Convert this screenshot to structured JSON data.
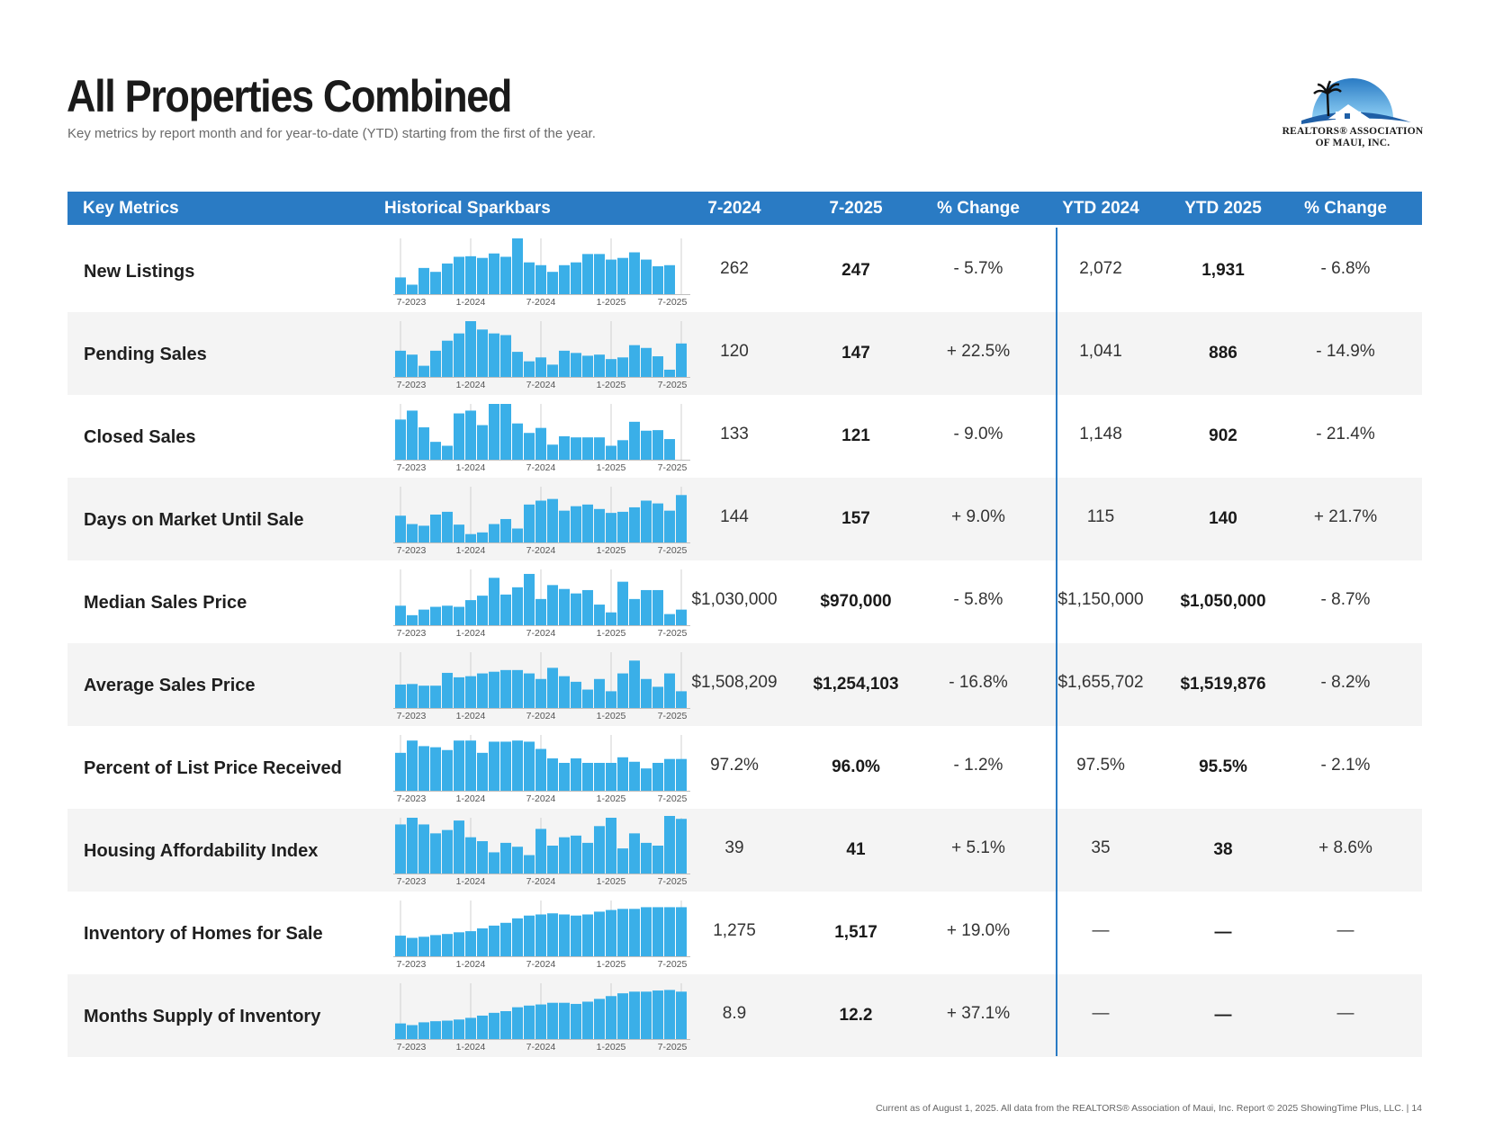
{
  "page": {
    "title": "All Properties Combined",
    "subtitle": "Key metrics by report month and for year-to-date (YTD) starting from the first of the year.",
    "logo_line1": "REALTORS® ASSOCIATION",
    "logo_line2": "OF MAUI, INC.",
    "footer": "Current as of August 1, 2025. All data from the REALTORS® Association of Maui, Inc. Report © 2025 ShowingTime Plus, LLC.  |  14"
  },
  "colors": {
    "header_bg": "#2a7bc4",
    "bar": "#3aafe8",
    "row_alt": "#f4f4f4"
  },
  "columns": [
    "Key Metrics",
    "Historical Sparkbars",
    "7-2024",
    "7-2025",
    "% Change",
    "YTD 2024",
    "YTD 2025",
    "% Change"
  ],
  "spark_axis_labels": [
    "7-2023",
    "1-2024",
    "7-2024",
    "1-2025",
    "7-2025"
  ],
  "rows": [
    {
      "metric": "New Listings",
      "m2024": "262",
      "m2025": "247",
      "mchg": "- 5.7%",
      "y2024": "2,072",
      "y2025": "1,931",
      "ychg": "- 6.8%",
      "spark": [
        0.3,
        0.17,
        0.47,
        0.4,
        0.55,
        0.67,
        0.68,
        0.65,
        0.73,
        0.67,
        1.0,
        0.57,
        0.52,
        0.4,
        0.52,
        0.57,
        0.72,
        0.72,
        0.62,
        0.65,
        0.75,
        0.62,
        0.5,
        0.52
      ]
    },
    {
      "metric": "Pending Sales",
      "m2024": "120",
      "m2025": "147",
      "mchg": "+ 22.5%",
      "y2024": "1,041",
      "y2025": "886",
      "ychg": "- 14.9%",
      "spark": [
        0.47,
        0.4,
        0.2,
        0.47,
        0.65,
        0.78,
        1.0,
        0.85,
        0.78,
        0.75,
        0.45,
        0.28,
        0.35,
        0.22,
        0.47,
        0.43,
        0.38,
        0.4,
        0.32,
        0.35,
        0.57,
        0.52,
        0.37,
        0.13,
        0.6
      ]
    },
    {
      "metric": "Closed Sales",
      "m2024": "133",
      "m2025": "121",
      "mchg": "- 9.0%",
      "y2024": "1,148",
      "y2025": "902",
      "ychg": "- 21.4%",
      "spark": [
        0.72,
        0.88,
        0.58,
        0.32,
        0.25,
        0.83,
        0.88,
        0.62,
        1.0,
        1.0,
        0.65,
        0.48,
        0.57,
        0.27,
        0.42,
        0.4,
        0.4,
        0.4,
        0.25,
        0.35,
        0.68,
        0.52,
        0.53,
        0.37
      ]
    },
    {
      "metric": "Days on Market Until Sale",
      "m2024": "144",
      "m2025": "157",
      "mchg": "+ 9.0%",
      "y2024": "115",
      "y2025": "140",
      "ychg": "+ 21.7%",
      "spark": [
        0.48,
        0.33,
        0.3,
        0.5,
        0.55,
        0.32,
        0.15,
        0.18,
        0.33,
        0.42,
        0.25,
        0.68,
        0.75,
        0.78,
        0.57,
        0.65,
        0.68,
        0.6,
        0.53,
        0.55,
        0.63,
        0.75,
        0.7,
        0.57,
        0.85
      ]
    },
    {
      "metric": "Median Sales Price",
      "m2024": "$1,030,000",
      "m2025": "$970,000",
      "mchg": "- 5.8%",
      "y2024": "$1,150,000",
      "y2025": "$1,050,000",
      "ychg": "- 8.7%",
      "spark": [
        0.35,
        0.18,
        0.28,
        0.33,
        0.35,
        0.33,
        0.45,
        0.53,
        0.85,
        0.55,
        0.68,
        0.92,
        0.47,
        0.72,
        0.65,
        0.57,
        0.63,
        0.37,
        0.23,
        0.78,
        0.47,
        0.63,
        0.63,
        0.2,
        0.28
      ]
    },
    {
      "metric": "Average Sales Price",
      "m2024": "$1,508,209",
      "m2025": "$1,254,103",
      "mchg": "- 16.8%",
      "y2024": "$1,655,702",
      "y2025": "$1,519,876",
      "ychg": "- 8.2%",
      "spark": [
        0.42,
        0.43,
        0.4,
        0.4,
        0.63,
        0.55,
        0.57,
        0.62,
        0.65,
        0.68,
        0.68,
        0.62,
        0.52,
        0.72,
        0.57,
        0.47,
        0.33,
        0.52,
        0.3,
        0.62,
        0.85,
        0.52,
        0.38,
        0.62,
        0.3
      ]
    },
    {
      "metric": "Percent of List Price Received",
      "m2024": "97.2%",
      "m2025": "96.0%",
      "mchg": "- 1.2%",
      "y2024": "97.5%",
      "y2025": "95.5%",
      "ychg": "- 2.1%",
      "spark": [
        0.68,
        0.9,
        0.8,
        0.78,
        0.73,
        0.9,
        0.9,
        0.68,
        0.88,
        0.88,
        0.9,
        0.88,
        0.75,
        0.58,
        0.5,
        0.58,
        0.5,
        0.5,
        0.5,
        0.6,
        0.52,
        0.4,
        0.5,
        0.57,
        0.57
      ]
    },
    {
      "metric": "Housing Affordability Index",
      "m2024": "39",
      "m2025": "41",
      "mchg": "+ 5.1%",
      "y2024": "35",
      "y2025": "38",
      "ychg": "+ 8.6%",
      "spark": [
        0.88,
        1.0,
        0.88,
        0.72,
        0.78,
        0.95,
        0.65,
        0.58,
        0.38,
        0.55,
        0.48,
        0.33,
        0.8,
        0.5,
        0.65,
        0.68,
        0.55,
        0.85,
        1.0,
        0.45,
        0.72,
        0.55,
        0.5,
        1.05,
        0.98
      ]
    },
    {
      "metric": "Inventory of Homes for Sale",
      "m2024": "1,275",
      "m2025": "1,517",
      "mchg": "+ 19.0%",
      "y2024": "—",
      "y2025": "—",
      "ychg": "—",
      "spark": [
        0.37,
        0.33,
        0.35,
        0.38,
        0.4,
        0.43,
        0.45,
        0.5,
        0.55,
        0.6,
        0.68,
        0.73,
        0.75,
        0.77,
        0.75,
        0.73,
        0.75,
        0.8,
        0.83,
        0.85,
        0.85,
        0.88,
        0.88,
        0.88,
        0.88
      ]
    },
    {
      "metric": "Months Supply of Inventory",
      "m2024": "8.9",
      "m2025": "12.2",
      "mchg": "+ 37.1%",
      "y2024": "—",
      "y2025": "—",
      "ychg": "—",
      "spark": [
        0.28,
        0.25,
        0.3,
        0.32,
        0.33,
        0.35,
        0.38,
        0.42,
        0.47,
        0.5,
        0.57,
        0.6,
        0.62,
        0.65,
        0.65,
        0.63,
        0.67,
        0.72,
        0.77,
        0.82,
        0.85,
        0.85,
        0.87,
        0.88,
        0.85
      ]
    }
  ]
}
